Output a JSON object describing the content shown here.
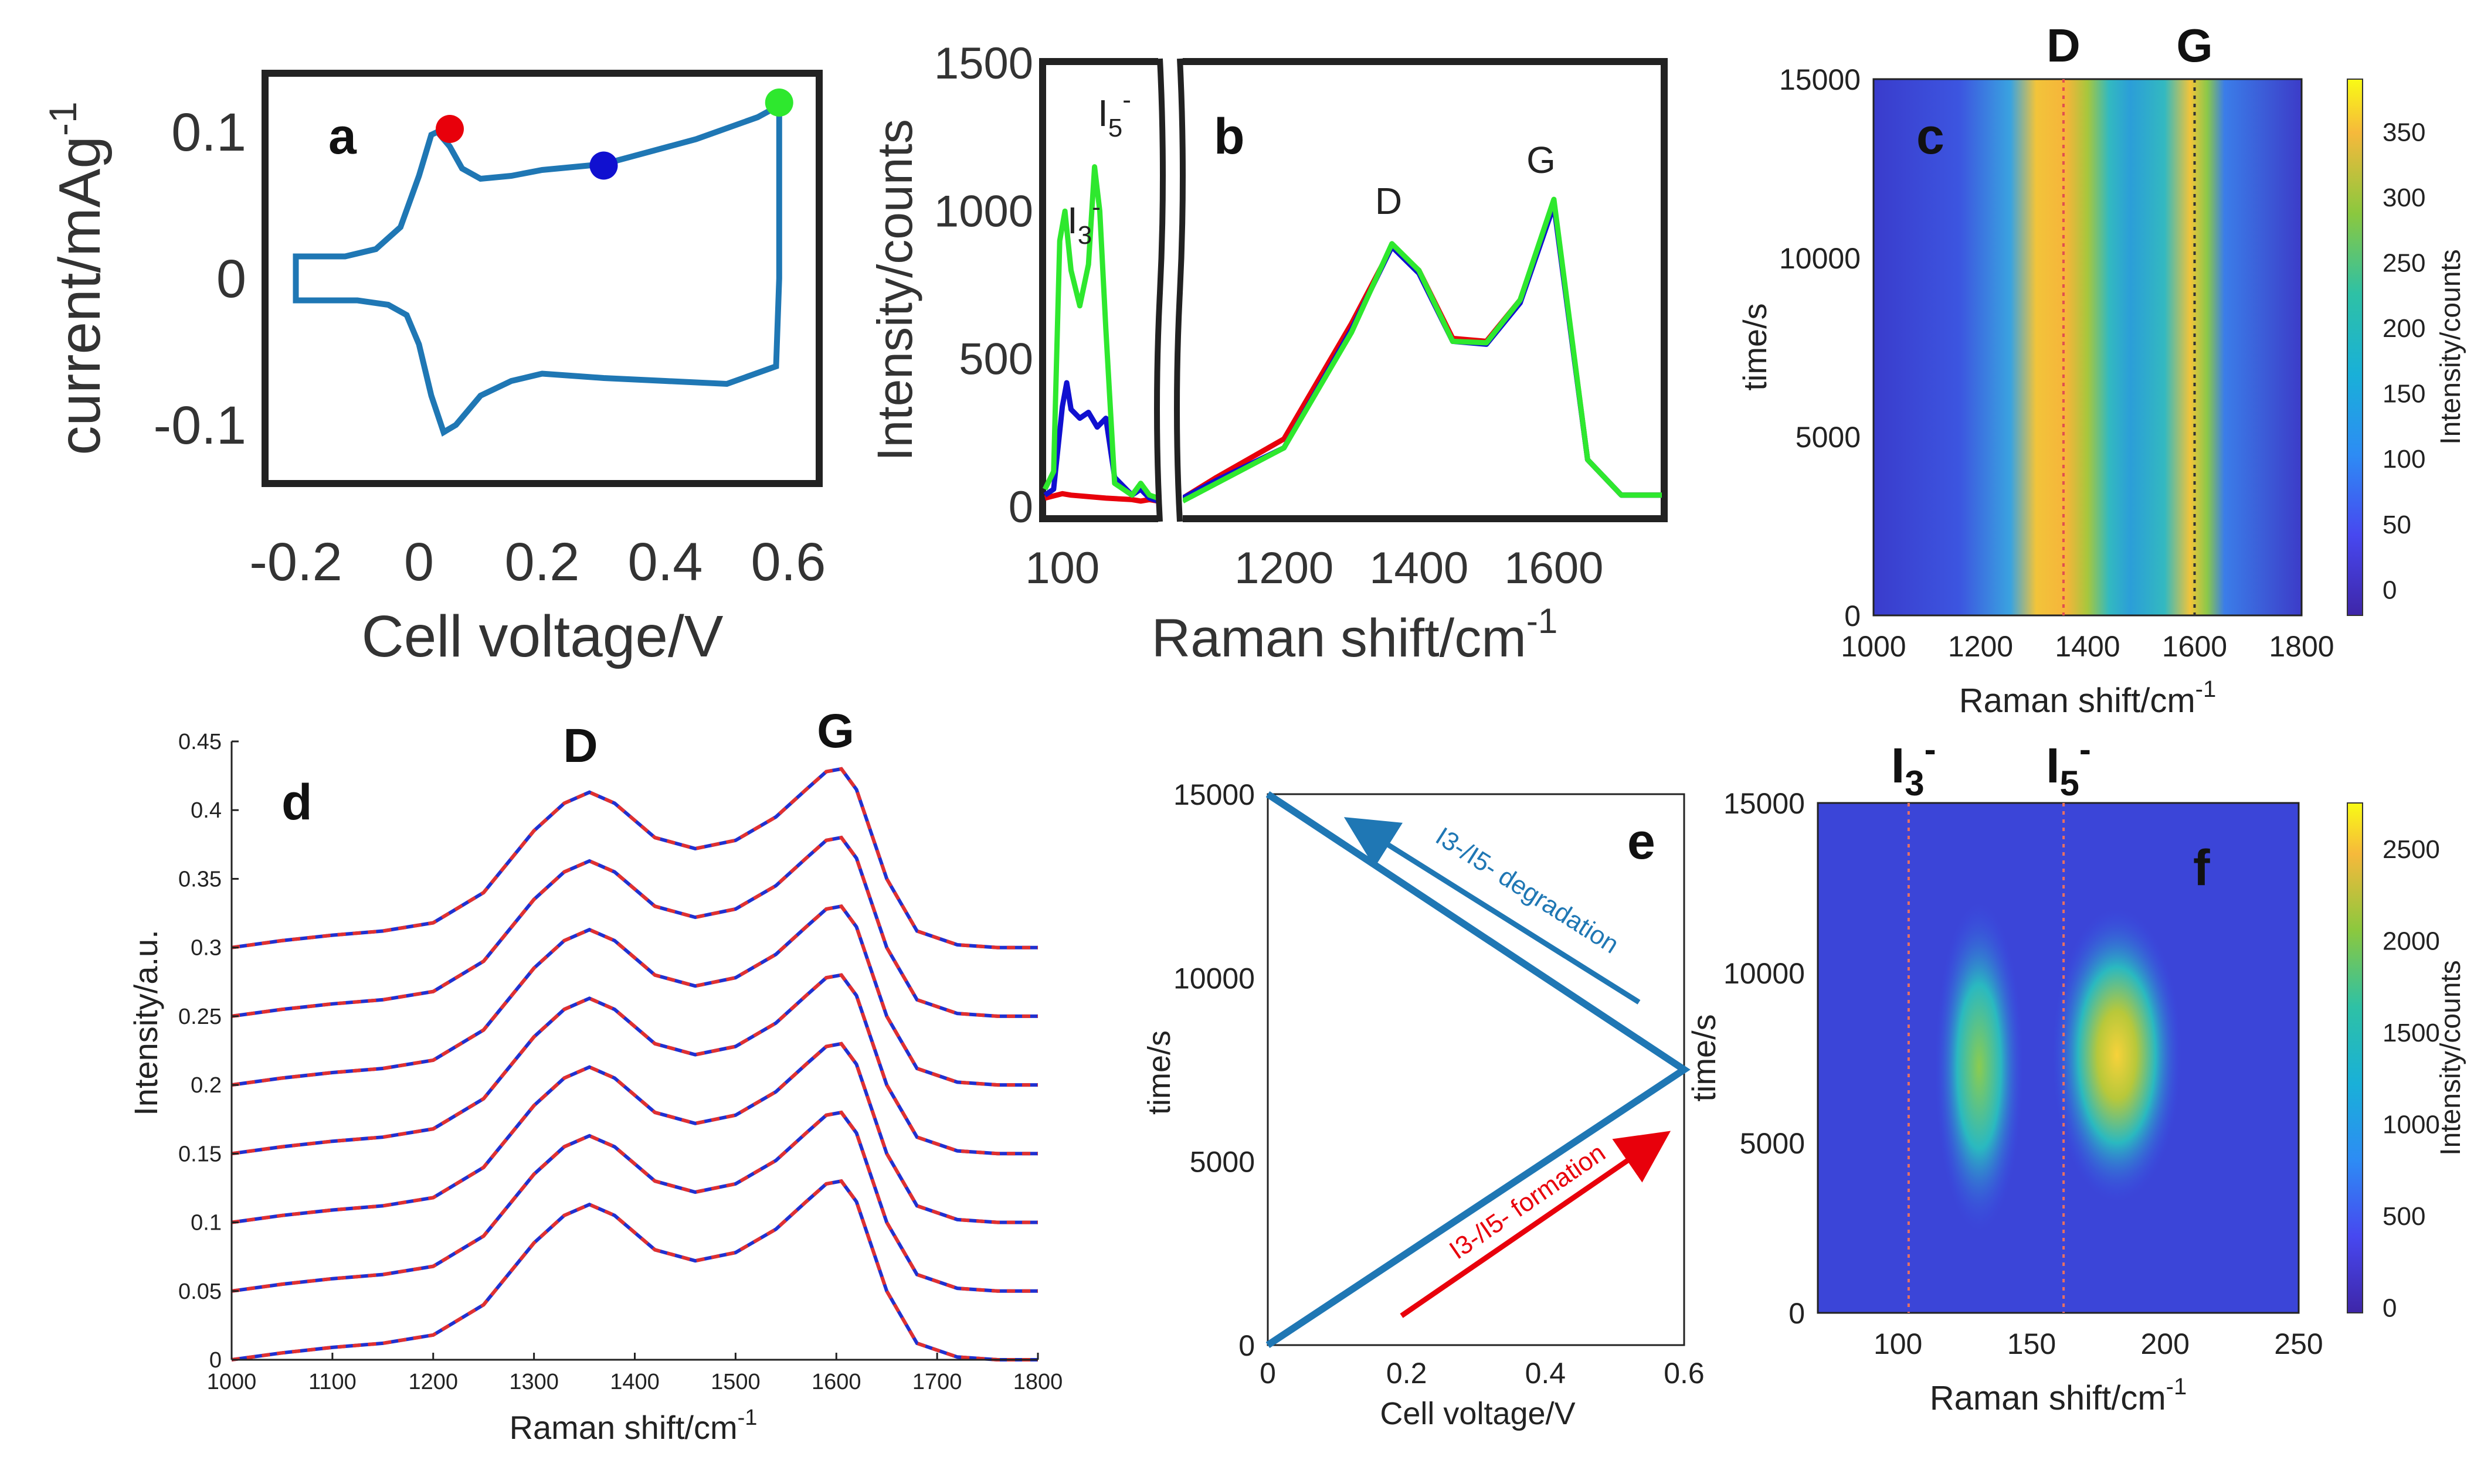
{
  "colors": {
    "cv_line": "#1f77b4",
    "red": "#e8000b",
    "blue": "#1010d0",
    "green": "#2ee82e",
    "frame": "#222222",
    "dash_red": "#e03030",
    "dash_blue": "#2030d0",
    "arrow_red": "#e8000b",
    "arrow_blue": "#1f77b4"
  },
  "chart_data": [
    {
      "panel": "a",
      "type": "line",
      "xlabel": "Cell voltage/V",
      "ylabel": "current/mAg",
      "ylabel_sup": "-1",
      "xlim": [
        -0.25,
        0.65
      ],
      "ylim": [
        -0.14,
        0.14
      ],
      "xticks": [
        "-0.2",
        "0",
        "0.2",
        "0.4",
        "0.6"
      ],
      "yticks": [
        "-0.1",
        "0",
        "0.1"
      ],
      "series": [
        {
          "name": "CV",
          "x": [
            -0.2,
            -0.2,
            -0.1,
            -0.05,
            -0.02,
            0.0,
            0.02,
            0.04,
            0.06,
            0.1,
            0.15,
            0.2,
            0.3,
            0.4,
            0.5,
            0.58,
            0.585,
            0.585,
            0.55,
            0.45,
            0.3,
            0.2,
            0.15,
            0.1,
            0.07,
            0.05,
            0.03,
            0.02,
            0.0,
            -0.03,
            -0.07,
            -0.12,
            -0.2
          ],
          "y": [
            0.015,
            -0.015,
            -0.015,
            -0.018,
            -0.025,
            -0.045,
            -0.08,
            -0.105,
            -0.1,
            -0.08,
            -0.07,
            -0.065,
            -0.068,
            -0.07,
            -0.072,
            -0.06,
            0.0,
            0.118,
            0.11,
            0.095,
            0.078,
            0.074,
            0.07,
            0.068,
            0.075,
            0.09,
            0.1,
            0.098,
            0.07,
            0.035,
            0.02,
            0.015,
            0.015
          ]
        }
      ],
      "markers": [
        {
          "name": "red",
          "x": 0.05,
          "y": 0.102
        },
        {
          "name": "blue",
          "x": 0.3,
          "y": 0.077
        },
        {
          "name": "green",
          "x": 0.585,
          "y": 0.12
        }
      ],
      "label": "a"
    },
    {
      "panel": "b",
      "type": "line",
      "xlabel": "Raman shift/cm",
      "xlabel_sup": "-1",
      "ylabel": "Intensity/counts",
      "ylim": [
        0,
        1500
      ],
      "yticks": [
        "0",
        "500",
        "1000",
        "1500"
      ],
      "xticks_left": [
        "100"
      ],
      "xticks_right": [
        "1200",
        "1400",
        "1600"
      ],
      "xlim_left": [
        80,
        210
      ],
      "xlim_right": [
        1050,
        1760
      ],
      "annotations": [
        "I",
        "3",
        "-",
        "I",
        "5",
        "-",
        "D",
        "G"
      ],
      "series": [
        {
          "name": "red",
          "x_left": [
            80,
            100,
            110,
            150,
            180,
            190,
            200,
            210
          ],
          "y_left": [
            30,
            45,
            40,
            30,
            25,
            20,
            25,
            20
          ],
          "x_right": [
            1050,
            1100,
            1200,
            1300,
            1360,
            1400,
            1450,
            1500,
            1550,
            1600,
            1650,
            1700,
            1760
          ],
          "y_right": [
            30,
            100,
            230,
            620,
            880,
            800,
            570,
            560,
            700,
            1030,
            160,
            40,
            40
          ]
        },
        {
          "name": "blue",
          "x_left": [
            80,
            90,
            100,
            105,
            110,
            120,
            130,
            140,
            150,
            160,
            180,
            190,
            200,
            210
          ],
          "y_left": [
            40,
            60,
            340,
            420,
            330,
            300,
            320,
            270,
            300,
            100,
            40,
            60,
            30,
            20
          ],
          "x_right": [
            1050,
            1100,
            1200,
            1300,
            1360,
            1400,
            1450,
            1500,
            1550,
            1600,
            1650,
            1700,
            1760
          ],
          "y_right": [
            30,
            90,
            200,
            600,
            880,
            790,
            560,
            550,
            690,
            1020,
            160,
            40,
            40
          ]
        },
        {
          "name": "green",
          "x_left": [
            80,
            90,
            97,
            103,
            110,
            120,
            130,
            137,
            143,
            150,
            160,
            180,
            190,
            200,
            210
          ],
          "y_left": [
            60,
            120,
            900,
            1000,
            800,
            680,
            820,
            1150,
            1000,
            600,
            80,
            40,
            80,
            40,
            30
          ],
          "x_right": [
            1050,
            1100,
            1200,
            1300,
            1360,
            1400,
            1450,
            1500,
            1550,
            1600,
            1650,
            1700,
            1760
          ],
          "y_right": [
            20,
            80,
            200,
            590,
            890,
            800,
            560,
            555,
            700,
            1040,
            160,
            40,
            40
          ]
        }
      ],
      "label": "b"
    },
    {
      "panel": "c",
      "type": "heatmap",
      "xlabel": "Raman shift/cm",
      "xlabel_sup": "-1",
      "ylabel": "time/s",
      "xlim": [
        1000,
        1800
      ],
      "ylim": [
        0,
        15000
      ],
      "xticks": [
        "1000",
        "1200",
        "1400",
        "1600",
        "1800"
      ],
      "yticks": [
        "0",
        "5000",
        "10000",
        "15000"
      ],
      "colorbar_label": "Intensity/counts",
      "colorbar_ticks": [
        "0",
        "50",
        "100",
        "150",
        "200",
        "250",
        "300",
        "350"
      ],
      "colorbar_range": [
        -20,
        390
      ],
      "peak_lines": [
        {
          "label": "D",
          "x": 1355
        },
        {
          "label": "G",
          "x": 1600
        }
      ],
      "label": "c"
    },
    {
      "panel": "d",
      "type": "line",
      "xlabel": "Raman shift/cm",
      "xlabel_sup": "-1",
      "ylabel": "Intensity/a.u.",
      "xlim": [
        1000,
        1800
      ],
      "ylim": [
        0,
        0.45
      ],
      "xticks": [
        "1000",
        "1100",
        "1200",
        "1300",
        "1400",
        "1500",
        "1600",
        "1700",
        "1800"
      ],
      "yticks": [
        "0",
        "0.05",
        "0.1",
        "0.15",
        "0.2",
        "0.25",
        "0.3",
        "0.35",
        "0.4",
        "0.45"
      ],
      "offsets": [
        0,
        0.05,
        0.1,
        0.15,
        0.2,
        0.25,
        0.3
      ],
      "shape_x": [
        1000,
        1050,
        1100,
        1150,
        1200,
        1250,
        1300,
        1330,
        1355,
        1380,
        1420,
        1460,
        1500,
        1540,
        1570,
        1590,
        1605,
        1620,
        1650,
        1680,
        1720,
        1760,
        1800
      ],
      "shape_y": [
        0.0,
        0.005,
        0.009,
        0.012,
        0.018,
        0.04,
        0.085,
        0.105,
        0.113,
        0.105,
        0.08,
        0.072,
        0.078,
        0.095,
        0.115,
        0.128,
        0.13,
        0.115,
        0.05,
        0.012,
        0.002,
        0.0,
        0.0
      ],
      "annotations": [
        "D",
        "G"
      ],
      "label": "d"
    },
    {
      "panel": "e",
      "type": "line",
      "xlabel": "Cell voltage/V",
      "ylabel": "time/s",
      "xlim": [
        0,
        0.6
      ],
      "ylim": [
        0,
        15000
      ],
      "xticks": [
        "0",
        "0.2",
        "0.4",
        "0.6"
      ],
      "yticks": [
        "0",
        "5000",
        "10000",
        "15000"
      ],
      "series": [
        {
          "name": "voltage-time",
          "x": [
            0,
            0.6,
            0
          ],
          "y": [
            0,
            7500,
            15000
          ]
        }
      ],
      "annotations": [
        {
          "text": "I3-/I5- formation",
          "color": "red"
        },
        {
          "text": "I3-/I5- degradation",
          "color": "blue"
        }
      ],
      "label": "e"
    },
    {
      "panel": "f",
      "type": "heatmap",
      "xlabel": "Raman shift/cm",
      "xlabel_sup": "-1",
      "ylabel": "time/s",
      "xlim": [
        70,
        250
      ],
      "ylim": [
        0,
        15000
      ],
      "xticks": [
        "100",
        "150",
        "200",
        "250"
      ],
      "yticks": [
        "0",
        "5000",
        "10000",
        "15000"
      ],
      "colorbar_label": "Intensity/counts",
      "colorbar_ticks": [
        "0",
        "500",
        "1000",
        "1500",
        "2000",
        "2500"
      ],
      "colorbar_range": [
        -30,
        2750
      ],
      "peak_lines": [
        {
          "label": "I3-",
          "x": 104
        },
        {
          "label": "I5-",
          "x": 162
        }
      ],
      "label": "f"
    }
  ]
}
